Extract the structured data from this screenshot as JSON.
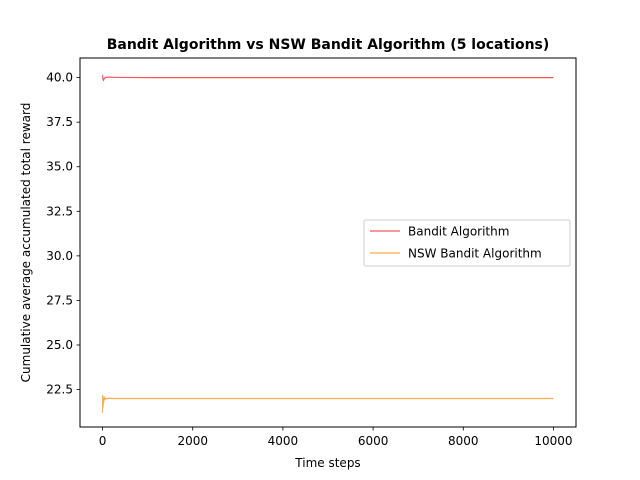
{
  "chart_data": {
    "type": "line",
    "title": "Bandit Algorithm vs NSW Bandit Algorithm (5 locations)",
    "xlabel": "Time steps",
    "ylabel": "Cumulative average accumulated total reward",
    "xlim": [
      -500,
      10500
    ],
    "ylim": [
      20.4,
      41.1
    ],
    "xticks": [
      0,
      2000,
      4000,
      6000,
      8000,
      10000
    ],
    "yticks": [
      22.5,
      25.0,
      27.5,
      30.0,
      32.5,
      35.0,
      37.5,
      40.0
    ],
    "grid": false,
    "legend_position": "center-right",
    "series": [
      {
        "name": "Bandit Algorithm",
        "color": "#ef5a5f",
        "x": [
          0,
          10,
          20,
          40,
          60,
          100,
          150,
          200,
          300,
          500,
          1000,
          2000,
          4000,
          6000,
          8000,
          10000
        ],
        "y": [
          40.15,
          39.9,
          39.85,
          39.95,
          40.0,
          40.02,
          40.03,
          40.02,
          40.01,
          40.01,
          40.0,
          40.0,
          40.0,
          40.0,
          40.0,
          40.0
        ]
      },
      {
        "name": "NSW Bandit Algorithm",
        "color": "#ffaa4a",
        "x": [
          0,
          5,
          10,
          15,
          20,
          30,
          40,
          60,
          80,
          100,
          150,
          200,
          300,
          500,
          1000,
          2000,
          4000,
          6000,
          8000,
          10000
        ],
        "y": [
          21.2,
          22.2,
          21.5,
          22.05,
          21.7,
          21.9,
          22.05,
          21.95,
          22.0,
          21.98,
          22.02,
          22.0,
          22.0,
          22.0,
          22.0,
          22.0,
          22.0,
          22.0,
          22.0,
          22.0
        ]
      }
    ]
  }
}
